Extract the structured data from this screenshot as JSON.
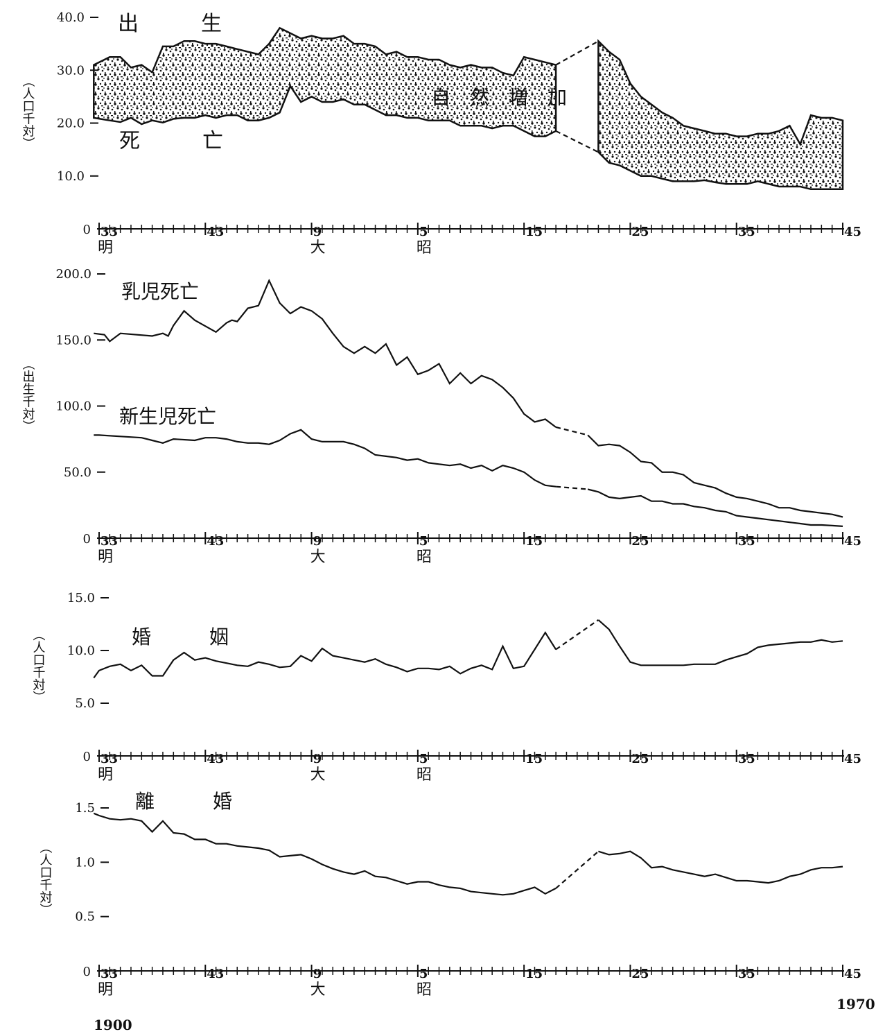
{
  "year_start": "1900",
  "year_end": "1970",
  "chart_data": [
    {
      "type": "area",
      "ylabel": "（人口千対）",
      "y_ticks": [
        "40.0",
        "30.0",
        "20.0",
        "10.0"
      ],
      "y_tick_values": [
        40,
        30,
        20,
        10
      ],
      "ylim": [
        0,
        40
      ],
      "x_zero_label": "0",
      "x_tick_labels": [
        {
          "text": "33",
          "year": 1900
        },
        {
          "text": "43",
          "year": 1910
        },
        {
          "text": "9",
          "year": 1920
        },
        {
          "text": "5",
          "year": 1930
        },
        {
          "text": "15",
          "year": 1940
        },
        {
          "text": "25",
          "year": 1950
        },
        {
          "text": "35",
          "year": 1960
        },
        {
          "text": "45",
          "year": 1970
        }
      ],
      "eras": [
        {
          "text": "明",
          "year": 1900
        },
        {
          "text": "大",
          "year": 1920
        },
        {
          "text": "昭",
          "year": 1930
        }
      ],
      "labels": {
        "birth": "出　　　生",
        "death": "死　　　亡",
        "increase": "自　然　増　加"
      },
      "series": [
        {
          "name": "出生",
          "x": [
            1899.5,
            1901,
            1902,
            1903,
            1904,
            1905,
            1906,
            1907,
            1908,
            1909,
            1910,
            1911,
            1912,
            1913,
            1914,
            1915,
            1916,
            1917,
            1918,
            1919,
            1920,
            1921,
            1922,
            1923,
            1924,
            1925,
            1926,
            1927,
            1928,
            1929,
            1930,
            1931,
            1932,
            1933,
            1934,
            1935,
            1936,
            1937,
            1938,
            1939,
            1940,
            1941,
            1942,
            1943,
            1947,
            1948,
            1949,
            1950,
            1951,
            1952,
            1953,
            1954,
            1955,
            1956,
            1957,
            1958,
            1959,
            1960,
            1961,
            1962,
            1963,
            1964,
            1965,
            1966,
            1967,
            1968,
            1969,
            1970
          ],
          "values": [
            31,
            32.5,
            32.5,
            30.5,
            31,
            29.6,
            34.5,
            34.5,
            35.5,
            35.5,
            35,
            35,
            34.5,
            34,
            33.5,
            33,
            35,
            38,
            37,
            36,
            36.5,
            36,
            36,
            36.5,
            35,
            35,
            34.5,
            33,
            33.5,
            32.5,
            32.5,
            32,
            32,
            31,
            30.5,
            31,
            30.5,
            30.5,
            29.5,
            29,
            32.5,
            32,
            31.5,
            31,
            35.5,
            33.5,
            32,
            27.5,
            25,
            23.5,
            22,
            21,
            19.5,
            19,
            18.5,
            18,
            18,
            17.5,
            17.5,
            18,
            18,
            18.5,
            19.5,
            16,
            21.5,
            21,
            21,
            20.5
          ]
        },
        {
          "name": "死亡",
          "x": [
            1899.5,
            1901,
            1902,
            1903,
            1904,
            1905,
            1906,
            1907,
            1908,
            1909,
            1910,
            1911,
            1912,
            1913,
            1914,
            1915,
            1916,
            1917,
            1918,
            1919,
            1920,
            1921,
            1922,
            1923,
            1924,
            1925,
            1926,
            1927,
            1928,
            1929,
            1930,
            1931,
            1932,
            1933,
            1934,
            1935,
            1936,
            1937,
            1938,
            1939,
            1940,
            1941,
            1942,
            1943,
            1947,
            1948,
            1949,
            1950,
            1951,
            1952,
            1953,
            1954,
            1955,
            1956,
            1957,
            1958,
            1959,
            1960,
            1961,
            1962,
            1963,
            1964,
            1965,
            1966,
            1967,
            1968,
            1969,
            1970
          ],
          "values": [
            21,
            20.5,
            20.2,
            21,
            19.8,
            20.5,
            20.1,
            20.8,
            21,
            21,
            21.5,
            21,
            21.5,
            21.5,
            20.5,
            20.5,
            21,
            22,
            27,
            24,
            25,
            24,
            24,
            24.5,
            23.5,
            23.5,
            22.5,
            21.5,
            21.5,
            21,
            21,
            20.5,
            20.5,
            20.5,
            19.5,
            19.5,
            19.5,
            19,
            19.5,
            19.5,
            18.5,
            17.5,
            17.5,
            18.5,
            14.5,
            12.5,
            12,
            11,
            10,
            10,
            9.5,
            9,
            9,
            9,
            9.2,
            8.8,
            8.5,
            8.5,
            8.5,
            9,
            8.5,
            8,
            8,
            8,
            7.5,
            7.5,
            7.5,
            7.5
          ]
        }
      ]
    },
    {
      "type": "line",
      "ylabel": "（出生千対）",
      "y_ticks": [
        "200.0",
        "150.0",
        "100.0",
        "50.0"
      ],
      "y_tick_values": [
        200,
        150,
        100,
        50
      ],
      "ylim": [
        0,
        200
      ],
      "x_zero_label": "0",
      "x_tick_labels": [
        {
          "text": "33",
          "year": 1900
        },
        {
          "text": "43",
          "year": 1910
        },
        {
          "text": "9",
          "year": 1920
        },
        {
          "text": "5",
          "year": 1930
        },
        {
          "text": "15",
          "year": 1940
        },
        {
          "text": "25",
          "year": 1950
        },
        {
          "text": "35",
          "year": 1960
        },
        {
          "text": "45",
          "year": 1970
        }
      ],
      "eras": [
        {
          "text": "明",
          "year": 1900
        },
        {
          "text": "大",
          "year": 1920
        },
        {
          "text": "昭",
          "year": 1930
        }
      ],
      "series": [
        {
          "name": "乳児死亡",
          "x": [
            1899.5,
            1900.5,
            1901,
            1902,
            1905,
            1906,
            1906.5,
            1907,
            1908,
            1909,
            1911,
            1912,
            1912.5,
            1913,
            1914,
            1915,
            1916,
            1917,
            1918,
            1919,
            1920,
            1921,
            1922,
            1923,
            1924,
            1925,
            1926,
            1927,
            1928,
            1929,
            1930,
            1931,
            1932,
            1933,
            1934,
            1935,
            1936,
            1937,
            1938,
            1939,
            1940,
            1941,
            1942,
            1943,
            1946,
            1947,
            1948,
            1949,
            1950,
            1951,
            1952,
            1953,
            1954,
            1955,
            1956,
            1957,
            1958,
            1959,
            1960,
            1961,
            1962,
            1963,
            1964,
            1965,
            1966,
            1967,
            1968,
            1969,
            1970
          ],
          "values": [
            155,
            154,
            149,
            155,
            153,
            155,
            153,
            161,
            172,
            165,
            156,
            163,
            165,
            164,
            174,
            176,
            195,
            178,
            170,
            175,
            172,
            166,
            155,
            145,
            140,
            145,
            140,
            147,
            131,
            137,
            124,
            127,
            132,
            117,
            125,
            117,
            123,
            120,
            114,
            106,
            94,
            88,
            90,
            84,
            78,
            70,
            71,
            70,
            65,
            58,
            57,
            50,
            50,
            48,
            42,
            40,
            38,
            34,
            31,
            30,
            28,
            26,
            23,
            23,
            21,
            20,
            19,
            18,
            16
          ]
        },
        {
          "name": "新生児死亡",
          "x": [
            1899.5,
            1900,
            1902,
            1904,
            1905,
            1906,
            1907,
            1909,
            1910,
            1911,
            1912,
            1913,
            1914,
            1915,
            1916,
            1917,
            1918,
            1919,
            1920,
            1921,
            1922,
            1923,
            1924,
            1925,
            1926,
            1927,
            1928,
            1929,
            1930,
            1931,
            1932,
            1933,
            1934,
            1935,
            1936,
            1937,
            1938,
            1939,
            1940,
            1941,
            1942,
            1943,
            1946,
            1947,
            1948,
            1949,
            1950,
            1951,
            1952,
            1953,
            1954,
            1955,
            1956,
            1957,
            1958,
            1959,
            1960,
            1961,
            1962,
            1963,
            1964,
            1965,
            1966,
            1967,
            1968,
            1969,
            1970
          ],
          "values": [
            78,
            78,
            77,
            76,
            74,
            72,
            75,
            74,
            76,
            76,
            75,
            73,
            72,
            72,
            71,
            74,
            79,
            82,
            75,
            73,
            73,
            73,
            71,
            68,
            63,
            62,
            61,
            59,
            60,
            57,
            56,
            55,
            56,
            53,
            55,
            51,
            55,
            53,
            50,
            44,
            40,
            39,
            37,
            35,
            31,
            30,
            31,
            32,
            28,
            28,
            26,
            26,
            24,
            23,
            21,
            20,
            17,
            16,
            15,
            14,
            13,
            12,
            11,
            10,
            10,
            9.5,
            9
          ]
        }
      ]
    },
    {
      "type": "line",
      "ylabel": "（人口千対）",
      "y_ticks": [
        "15.0",
        "10.0",
        "5.0"
      ],
      "y_tick_values": [
        15,
        10,
        5
      ],
      "ylim": [
        0,
        15
      ],
      "x_zero_label": "0",
      "x_tick_labels": [
        {
          "text": "33",
          "year": 1900
        },
        {
          "text": "43",
          "year": 1910
        },
        {
          "text": "9",
          "year": 1920
        },
        {
          "text": "5",
          "year": 1930
        },
        {
          "text": "15",
          "year": 1940
        },
        {
          "text": "25",
          "year": 1950
        },
        {
          "text": "35",
          "year": 1960
        },
        {
          "text": "45",
          "year": 1970
        }
      ],
      "eras": [
        {
          "text": "明",
          "year": 1900
        },
        {
          "text": "大",
          "year": 1920
        },
        {
          "text": "昭",
          "year": 1930
        }
      ],
      "labels": {
        "title": "婚　　　姻"
      },
      "series": [
        {
          "name": "婚姻",
          "x": [
            1899.5,
            1900,
            1901,
            1902,
            1903,
            1904,
            1905,
            1906,
            1907,
            1908,
            1909,
            1910,
            1911,
            1912,
            1913,
            1914,
            1915,
            1916,
            1917,
            1918,
            1919,
            1920,
            1921,
            1922,
            1923,
            1924,
            1925,
            1926,
            1927,
            1928,
            1929,
            1930,
            1931,
            1932,
            1933,
            1934,
            1935,
            1936,
            1937,
            1938,
            1939,
            1940,
            1941,
            1942,
            1943,
            1947,
            1948,
            1949,
            1950,
            1951,
            1952,
            1953,
            1954,
            1955,
            1956,
            1957,
            1958,
            1959,
            1960,
            1961,
            1962,
            1963,
            1964,
            1965,
            1966,
            1967,
            1968,
            1969,
            1970
          ],
          "values": [
            7.4,
            8.1,
            8.5,
            8.7,
            8.1,
            8.6,
            7.6,
            7.6,
            9.1,
            9.8,
            9.1,
            9.3,
            9.0,
            8.8,
            8.6,
            8.5,
            8.9,
            8.7,
            8.4,
            8.5,
            9.5,
            9.0,
            10.2,
            9.5,
            9.3,
            9.1,
            8.9,
            9.2,
            8.7,
            8.4,
            8.0,
            8.3,
            8.3,
            8.2,
            8.5,
            7.8,
            8.3,
            8.6,
            8.2,
            10.4,
            8.3,
            8.5,
            10.1,
            11.7,
            10.1,
            12.9,
            12.0,
            10.4,
            8.9,
            8.6,
            8.6,
            8.6,
            8.6,
            8.6,
            8.7,
            8.7,
            8.7,
            9.1,
            9.4,
            9.7,
            10.3,
            10.5,
            10.6,
            10.7,
            10.8,
            10.8,
            11.0,
            10.8,
            10.9
          ]
        }
      ]
    },
    {
      "type": "line",
      "ylabel": "（人口千対）",
      "y_ticks": [
        "1.5",
        "1.0",
        "0.5"
      ],
      "y_tick_values": [
        1.5,
        1.0,
        0.5
      ],
      "ylim": [
        0,
        1.5
      ],
      "x_zero_label": "0",
      "x_tick_labels": [
        {
          "text": "33",
          "year": 1900
        },
        {
          "text": "43",
          "year": 1910
        },
        {
          "text": "9",
          "year": 1920
        },
        {
          "text": "5",
          "year": 1930
        },
        {
          "text": "15",
          "year": 1940
        },
        {
          "text": "25",
          "year": 1950
        },
        {
          "text": "35",
          "year": 1960
        },
        {
          "text": "45",
          "year": 1970
        }
      ],
      "eras": [
        {
          "text": "明",
          "year": 1900
        },
        {
          "text": "大",
          "year": 1920
        },
        {
          "text": "昭",
          "year": 1930
        }
      ],
      "labels": {
        "title": "離　　　婚"
      },
      "series": [
        {
          "name": "離婚",
          "x": [
            1899.5,
            1900,
            1901,
            1902,
            1903,
            1904,
            1905,
            1906,
            1907,
            1908,
            1909,
            1910,
            1911,
            1912,
            1913,
            1914,
            1915,
            1916,
            1917,
            1918,
            1919,
            1920,
            1921,
            1922,
            1923,
            1924,
            1925,
            1926,
            1927,
            1928,
            1929,
            1930,
            1931,
            1932,
            1933,
            1934,
            1935,
            1936,
            1937,
            1938,
            1939,
            1940,
            1941,
            1942,
            1943,
            1947,
            1948,
            1949,
            1950,
            1951,
            1952,
            1953,
            1954,
            1955,
            1956,
            1957,
            1958,
            1959,
            1960,
            1961,
            1962,
            1963,
            1964,
            1965,
            1966,
            1967,
            1968,
            1969,
            1970
          ],
          "values": [
            1.45,
            1.43,
            1.4,
            1.39,
            1.4,
            1.38,
            1.28,
            1.38,
            1.27,
            1.26,
            1.21,
            1.21,
            1.17,
            1.17,
            1.15,
            1.14,
            1.13,
            1.11,
            1.05,
            1.06,
            1.07,
            1.03,
            0.98,
            0.94,
            0.91,
            0.89,
            0.92,
            0.87,
            0.86,
            0.83,
            0.8,
            0.82,
            0.82,
            0.79,
            0.77,
            0.76,
            0.73,
            0.72,
            0.71,
            0.7,
            0.71,
            0.74,
            0.77,
            0.71,
            0.76,
            1.1,
            1.07,
            1.08,
            1.1,
            1.04,
            0.95,
            0.96,
            0.93,
            0.91,
            0.89,
            0.87,
            0.89,
            0.86,
            0.83,
            0.83,
            0.82,
            0.81,
            0.83,
            0.87,
            0.89,
            0.93,
            0.95,
            0.95,
            0.96
          ]
        }
      ]
    }
  ]
}
